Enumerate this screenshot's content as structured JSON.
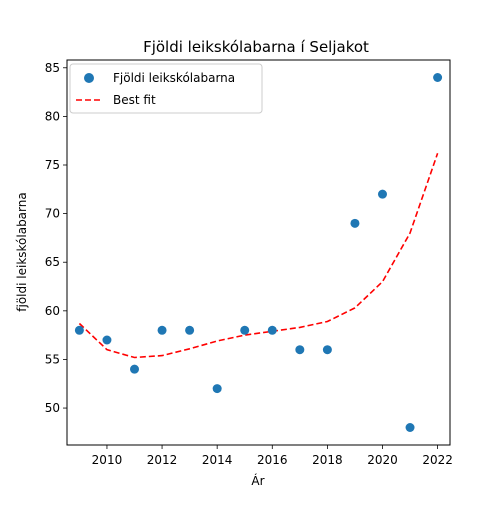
{
  "chart_data": {
    "type": "scatter",
    "title": "Fjöldi leikskólabarna í Seljakot",
    "xlabel": "Ár",
    "ylabel": "fjöldi leikskólabarna",
    "xlim": [
      2008.55,
      2022.45
    ],
    "ylim": [
      46.2,
      85.8
    ],
    "xticks": [
      2010,
      2012,
      2014,
      2016,
      2018,
      2020,
      2022
    ],
    "yticks": [
      50,
      55,
      60,
      65,
      70,
      75,
      80,
      85
    ],
    "grid": false,
    "legend_position": "upper left",
    "series": [
      {
        "name": "Fjöldi leikskólabarna",
        "kind": "scatter",
        "color": "#1f77b4",
        "x": [
          2009,
          2010,
          2011,
          2012,
          2013,
          2014,
          2015,
          2016,
          2017,
          2018,
          2019,
          2020,
          2021,
          2022
        ],
        "y": [
          58,
          57,
          54,
          58,
          58,
          52,
          58,
          58,
          56,
          56,
          69,
          72,
          48,
          84
        ]
      },
      {
        "name": "Best fit",
        "kind": "line",
        "style": "dashed",
        "color": "#ff0000",
        "x": [
          2009,
          2010,
          2011,
          2012,
          2013,
          2014,
          2015,
          2016,
          2017,
          2018,
          2019,
          2020,
          2021,
          2022
        ],
        "y": [
          58.7,
          56.0,
          55.2,
          55.4,
          56.1,
          56.9,
          57.5,
          57.9,
          58.3,
          58.9,
          60.3,
          63.0,
          68.0,
          76.2
        ]
      }
    ]
  }
}
